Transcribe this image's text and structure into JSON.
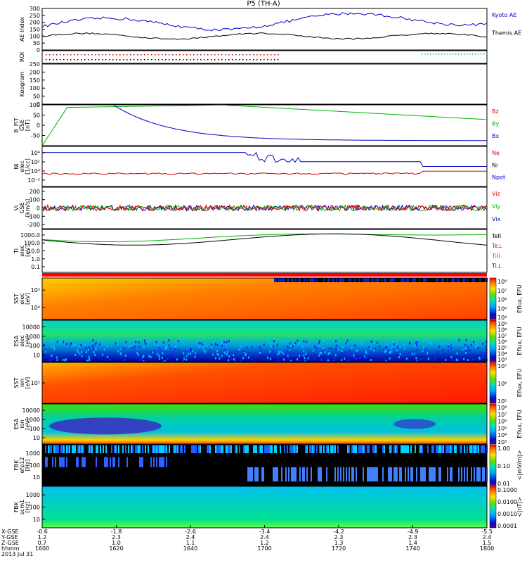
{
  "title": "P5 (TH-A)",
  "chart_data": [
    {
      "type": "line",
      "ylabel": "AE Index",
      "yticks": [
        0,
        50,
        100,
        150,
        200,
        250,
        300
      ],
      "ylim": [
        0,
        300
      ],
      "series": [
        {
          "name": "Kyoto AE",
          "color": "#0000c8"
        },
        {
          "name": "Themis AE",
          "color": "#000000"
        }
      ]
    },
    {
      "type": "line",
      "ylabel": "ROI"
    },
    {
      "type": "line",
      "ylabel": "Keogram",
      "yticks": [
        0,
        50,
        100,
        150,
        200,
        250
      ],
      "ylim": [
        0,
        250
      ]
    },
    {
      "type": "line",
      "ylabel_lines": [
        "B_FIT",
        "GSE",
        "[nT]"
      ],
      "yticks": [
        -50,
        0,
        50,
        100
      ],
      "ylim": [
        -100,
        100
      ],
      "series": [
        {
          "name": "Bz",
          "color": "#d00000"
        },
        {
          "name": "By",
          "color": "#00b000"
        },
        {
          "name": "Bx",
          "color": "#0000c8"
        }
      ]
    },
    {
      "type": "line",
      "ylabel_lines": [
        "Ni",
        "elec",
        "[1/cc]"
      ],
      "yticks": [
        "10⁴",
        "10²",
        "10⁰",
        "10⁻²"
      ],
      "series": [
        {
          "name": "Ne",
          "color": "#d00000"
        },
        {
          "name": "Ni",
          "color": "#000000"
        },
        {
          "name": "Npot",
          "color": "#0000c8"
        }
      ]
    },
    {
      "type": "line",
      "ylabel_lines": [
        "Vi",
        "GSE",
        "[km/s]"
      ],
      "yticks": [
        -200,
        -100,
        0,
        100,
        200
      ],
      "ylim": [
        -250,
        250
      ],
      "series": [
        {
          "name": "Viz",
          "color": "#d00000"
        },
        {
          "name": "Viy",
          "color": "#00b000"
        },
        {
          "name": "Vix",
          "color": "#0000c8"
        }
      ]
    },
    {
      "type": "line",
      "ylabel_lines": [
        "Ti",
        "elec",
        "[eV]"
      ],
      "yticks": [
        "1000.0",
        "100.0",
        "10.0",
        "1.0",
        "0.1"
      ],
      "series": [
        {
          "name": "TeII",
          "color": "#000000"
        },
        {
          "name": "Te⊥",
          "color": "#d00000"
        },
        {
          "name": "TiII",
          "color": "#00b000"
        },
        {
          "name": "Ti⊥",
          "color": "#0000c8"
        }
      ]
    },
    {
      "type": "heatmap",
      "ylabel_lines": [
        "SST",
        "elec",
        "[eV]"
      ],
      "yticks": [
        "10⁵",
        "10⁴"
      ],
      "colorbar_label": "Eflux, EFU",
      "colorbar_ticks": [
        "10⁸",
        "10⁷",
        "10⁶",
        "10⁵",
        "10⁴"
      ]
    },
    {
      "type": "heatmap",
      "ylabel_lines": [
        "ESA",
        "elec",
        "[eV]"
      ],
      "yticks": [
        "10000",
        "1000",
        "100",
        "10"
      ],
      "colorbar_label": "Eflux, EFU",
      "colorbar_ticks": [
        "10⁹",
        "10⁸",
        "10⁷",
        "10⁶",
        "10⁵",
        "10⁴",
        "10³"
      ]
    },
    {
      "type": "heatmap",
      "ylabel_lines": [
        "SST",
        "ion",
        "[eV]"
      ],
      "yticks": [
        "10⁵"
      ],
      "colorbar_label": "Eflux, EFU",
      "colorbar_ticks": [
        "10⁷",
        "10⁶",
        "10⁵"
      ]
    },
    {
      "type": "heatmap",
      "ylabel_lines": [
        "ESA",
        "ion",
        "[eV]"
      ],
      "yticks": [
        "10000",
        "1000",
        "100",
        "10"
      ],
      "colorbar_label": "Eflux, EFU",
      "colorbar_ticks": [
        "10⁸",
        "10⁷",
        "10⁶",
        "10⁵",
        "10⁴",
        "10³"
      ]
    },
    {
      "type": "heatmap",
      "ylabel_lines": [
        "FBK",
        "efp12",
        "[Hz]"
      ],
      "yticks": [
        "1000",
        "100",
        "10"
      ],
      "colorbar_label": "<|mV/m|>",
      "colorbar_ticks": [
        "1.00",
        "0.10",
        "0.01"
      ]
    },
    {
      "type": "heatmap",
      "ylabel_lines": [
        "FBK",
        "scm1",
        "[Hz]"
      ],
      "yticks": [
        "1000",
        "100",
        "10"
      ],
      "colorbar_label": "<|nT|>",
      "colorbar_ticks": [
        "0.1000",
        "0.0100",
        "0.0010",
        "0.0001"
      ]
    }
  ],
  "x_axis": {
    "row_labels": [
      "X-GSE",
      "Y-GSE",
      "Z-GSE",
      "hhmm",
      "2013 Jul 31"
    ],
    "ticks": [
      {
        "values": [
          "-0.6",
          "1.2",
          "0.7",
          "1600"
        ]
      },
      {
        "values": [
          "-1.8",
          "2.3",
          "1.0",
          "1620"
        ]
      },
      {
        "values": [
          "-2.6",
          "2.4",
          "1.1",
          "1640"
        ]
      },
      {
        "values": [
          "-3.4",
          "2.4",
          "1.2",
          "1700"
        ]
      },
      {
        "values": [
          "-4.2",
          "2.3",
          "1.3",
          "1720"
        ]
      },
      {
        "values": [
          "-4.9",
          "2.3",
          "1.4",
          "1740"
        ]
      },
      {
        "values": [
          "-5.5",
          "2.4",
          "1.5",
          "1800"
        ]
      }
    ]
  }
}
